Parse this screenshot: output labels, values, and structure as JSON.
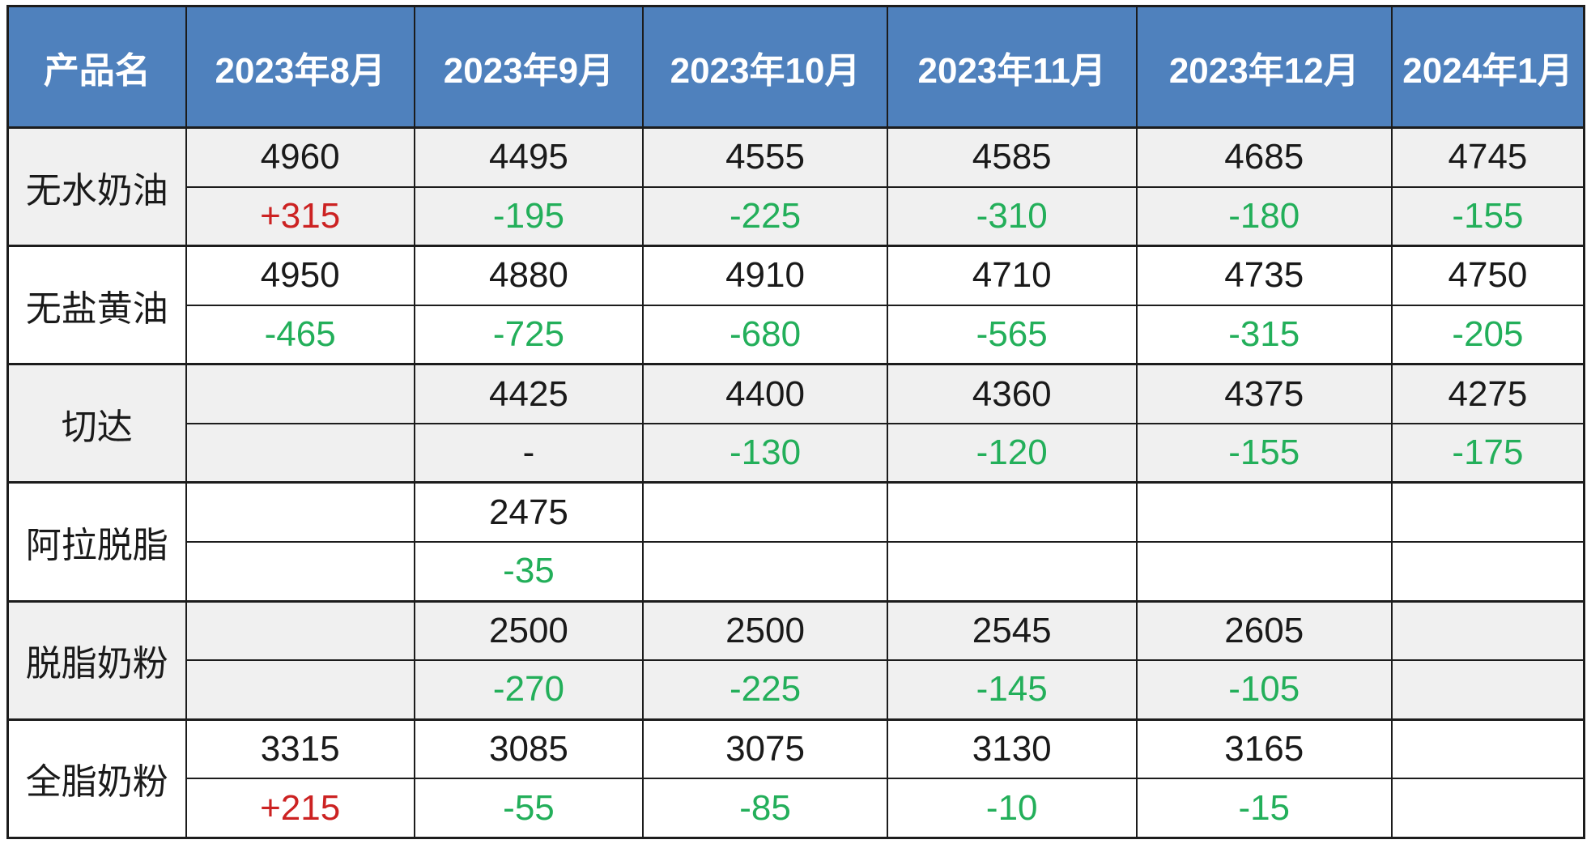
{
  "chart_data": {
    "type": "table",
    "columns": [
      "产品名",
      "2023年8月",
      "2023年9月",
      "2023年10月",
      "2023年11月",
      "2023年12月",
      "2024年1月"
    ],
    "products": [
      {
        "name": "无水奶油",
        "prices": [
          "4960",
          "4495",
          "4555",
          "4585",
          "4685",
          "4745"
        ],
        "changes": [
          "+315",
          "-195",
          "-225",
          "-310",
          "-180",
          "-155"
        ]
      },
      {
        "name": "无盐黄油",
        "prices": [
          "4950",
          "4880",
          "4910",
          "4710",
          "4735",
          "4750"
        ],
        "changes": [
          "-465",
          "-725",
          "-680",
          "-565",
          "-315",
          "-205"
        ]
      },
      {
        "name": "切达",
        "prices": [
          "",
          "4425",
          "4400",
          "4360",
          "4375",
          "4275"
        ],
        "changes": [
          "",
          "-",
          "-130",
          "-120",
          "-155",
          "-175"
        ]
      },
      {
        "name": "阿拉脱脂",
        "prices": [
          "",
          "2475",
          "",
          "",
          "",
          ""
        ],
        "changes": [
          "",
          "-35",
          "",
          "",
          "",
          ""
        ]
      },
      {
        "name": "脱脂奶粉",
        "prices": [
          "",
          "2500",
          "2500",
          "2545",
          "2605",
          ""
        ],
        "changes": [
          "",
          "-270",
          "-225",
          "-145",
          "-105",
          ""
        ]
      },
      {
        "name": "全脂奶粉",
        "prices": [
          "3315",
          "3085",
          "3075",
          "3130",
          "3165",
          ""
        ],
        "changes": [
          "+215",
          "-55",
          "-85",
          "-10",
          "-15",
          ""
        ]
      }
    ],
    "layout_hints": {
      "column_width_percents": [
        11.3,
        14.5,
        14.5,
        15.5,
        15.8,
        16.2,
        12.2
      ],
      "banded_group_indexes": [
        0,
        2,
        4
      ]
    },
    "colors": {
      "header_bg": "#4f81bd",
      "header_text": "#ffffff",
      "increase_text": "#cc2222",
      "decrease_text": "#23af5a",
      "band_bg": "#f0f0f0",
      "plain_bg": "#ffffff",
      "border": "#1c1c1c",
      "value_text": "#1a1a1a"
    }
  }
}
